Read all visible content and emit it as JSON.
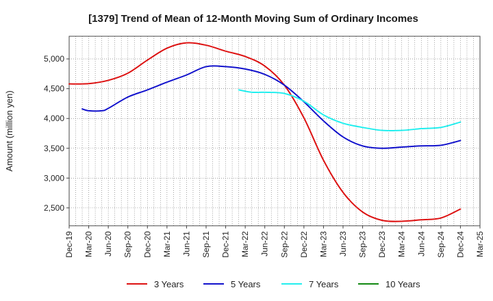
{
  "chart_data": {
    "type": "line",
    "title": "[1379]  Trend of Mean of 12-Month Moving Sum of Ordinary Incomes",
    "xlabel": "",
    "ylabel": "Amount (million yen)",
    "ylim": [
      2200,
      5380
    ],
    "yticks": [
      2500,
      3000,
      3500,
      4000,
      4500,
      5000
    ],
    "ytick_labels": [
      "2,500",
      "3,000",
      "3,500",
      "4,000",
      "4,500",
      "5,000"
    ],
    "x_tick_labels": [
      "Dec-19",
      "Mar-20",
      "Jun-20",
      "Sep-20",
      "Dec-20",
      "Mar-21",
      "Jun-21",
      "Sep-21",
      "Dec-21",
      "Mar-22",
      "Jun-22",
      "Sep-22",
      "Dec-22",
      "Mar-23",
      "Jun-23",
      "Sep-23",
      "Dec-23",
      "Mar-24",
      "Jun-24",
      "Sep-24",
      "Dec-24",
      "Mar-25"
    ],
    "x_index_range": [
      0,
      63
    ],
    "grid": true,
    "legend_position": "bottom",
    "series": [
      {
        "name": "3 Years",
        "color": "#dd1111",
        "x": [
          0,
          3,
          6,
          9,
          12,
          15,
          18,
          21,
          24,
          27,
          30,
          33,
          36,
          39,
          42,
          45,
          48,
          51,
          54,
          57,
          60
        ],
        "values": [
          4580,
          4585,
          4640,
          4760,
          4980,
          5180,
          5270,
          5230,
          5130,
          5040,
          4880,
          4560,
          4010,
          3300,
          2760,
          2430,
          2290,
          2275,
          2300,
          2330,
          2480
        ]
      },
      {
        "name": "5 Years",
        "color": "#1111cc",
        "x": [
          2,
          3,
          5,
          6,
          9,
          12,
          15,
          18,
          21,
          24,
          27,
          30,
          33,
          36,
          39,
          42,
          45,
          48,
          51,
          54,
          57,
          60
        ],
        "values": [
          4160,
          4130,
          4130,
          4170,
          4360,
          4480,
          4610,
          4730,
          4870,
          4870,
          4830,
          4740,
          4560,
          4280,
          3960,
          3690,
          3540,
          3500,
          3520,
          3540,
          3550,
          3630
        ]
      },
      {
        "name": "7 Years",
        "color": "#22eeee",
        "x": [
          26,
          28,
          30,
          33,
          36,
          39,
          42,
          45,
          48,
          51,
          54,
          57,
          60
        ],
        "values": [
          4480,
          4440,
          4440,
          4420,
          4290,
          4060,
          3920,
          3850,
          3800,
          3800,
          3830,
          3850,
          3940
        ]
      },
      {
        "name": "10 Years",
        "color": "#118811",
        "x": [],
        "values": []
      }
    ]
  }
}
